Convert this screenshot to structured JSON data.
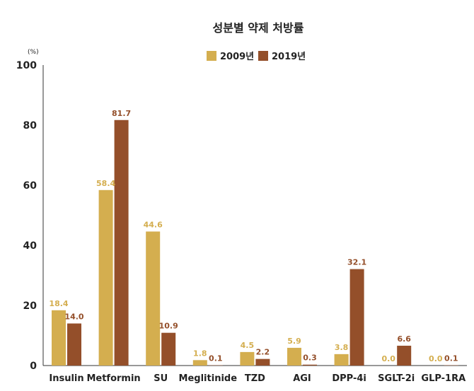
{
  "chart_data": {
    "type": "bar",
    "title": "성분별 약제 처방률",
    "ylabel": "(%)",
    "xlabel": "",
    "ylim": [
      0,
      100
    ],
    "yticks": [
      0,
      20,
      40,
      60,
      80,
      100
    ],
    "grid": false,
    "legend_position": "top-center",
    "categories": [
      "Insulin",
      "Metformin",
      "SU",
      "Meglitinide",
      "TZD",
      "AGI",
      "DPP-4i",
      "SGLT-2i",
      "GLP-1RA"
    ],
    "series": [
      {
        "name": "2009년",
        "color": "#D4AE4F",
        "values": [
          18.4,
          58.4,
          44.6,
          1.8,
          4.5,
          5.9,
          3.8,
          0.0,
          0.0
        ],
        "labels": [
          "18.4",
          "58.4",
          "44.6",
          "1.8",
          "4.5",
          "5.9",
          "3.8",
          "0.0",
          "0.0"
        ]
      },
      {
        "name": "2019년",
        "color": "#944F2A",
        "values": [
          14.0,
          81.7,
          10.9,
          0.1,
          2.2,
          0.3,
          32.1,
          6.6,
          0.1
        ],
        "labels": [
          "14.0",
          "81.7",
          "10.9",
          "0.1",
          "2.2",
          "0.3",
          "32.1",
          "6.6",
          "0.1"
        ]
      }
    ]
  }
}
